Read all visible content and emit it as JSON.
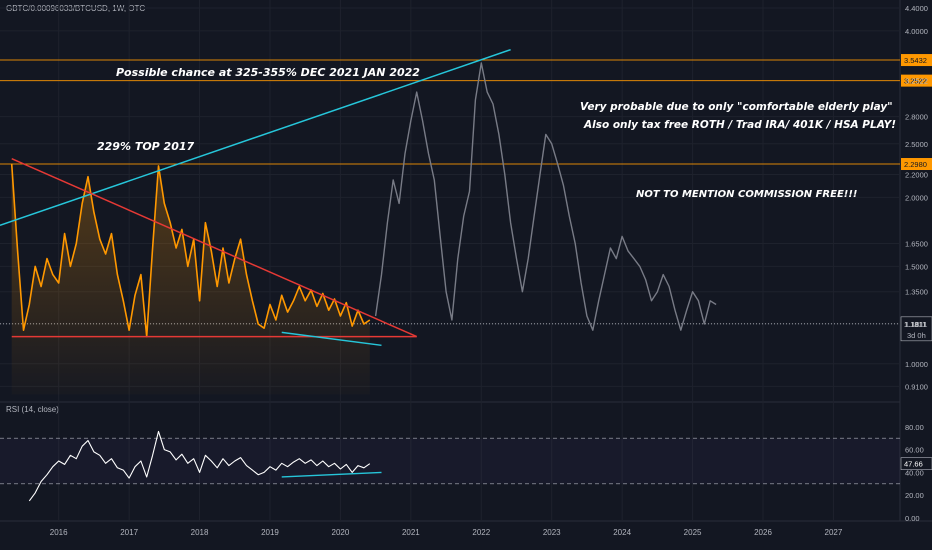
{
  "header": {
    "symbol": "GBTC/0.00096033/BTCUSD, 1W, OTC",
    "rsi_label": "RSI (14, close)"
  },
  "annotations": {
    "target": "Possible chance at 325-355% DEC 2021 JAN 2022",
    "top2017": "229% TOP  2017",
    "probable1": "Very probable due to only \"comfortable elderly play\"",
    "probable2": "Also only tax free ROTH / Trad IRA/ 401K / HSA PLAY!",
    "commission": "NOT TO MENTION COMMISSION FREE!!!"
  },
  "colors": {
    "background": "#131722",
    "price": "#ff9800",
    "projection": "#787b86",
    "trend_upper": "#26c6da",
    "trend_lower": "#e53935",
    "level": "#ff9800",
    "rsi": "#ffffff",
    "current": "#b2b5be"
  },
  "chart_data": {
    "type": "line",
    "price_axis": {
      "scale": "log",
      "ticks": [
        "4.4000",
        "4.0000",
        "3.2522",
        "2.8000",
        "2.5000",
        "2.2000",
        "2.0000",
        "1.6500",
        "1.5000",
        "1.3500",
        "1.1811",
        "1.0000",
        "0.9100"
      ],
      "range": [
        0.86,
        4.55
      ]
    },
    "levels": [
      {
        "label": "3.5432",
        "value": 3.5432
      },
      {
        "label": "3.2522",
        "value": 3.2522
      },
      {
        "label": "2.2980",
        "value": 2.298
      }
    ],
    "current": {
      "value": 1.1811,
      "label": "1.1811",
      "countdown": "3d 0h"
    },
    "x_axis": {
      "labels": [
        "2016",
        "2017",
        "2018",
        "2019",
        "2020",
        "2021",
        "2022",
        "2023",
        "2024",
        "2025",
        "2026",
        "2027"
      ],
      "range": [
        "2015-03",
        "2027-12"
      ]
    },
    "series": [
      {
        "kind": "actual",
        "points": [
          [
            "2015-05",
            2.3
          ],
          [
            "2015-06",
            1.6
          ],
          [
            "2015-07",
            1.15
          ],
          [
            "2015-08",
            1.28
          ],
          [
            "2015-09",
            1.5
          ],
          [
            "2015-10",
            1.38
          ],
          [
            "2015-11",
            1.55
          ],
          [
            "2015-12",
            1.45
          ],
          [
            "2016-01",
            1.4
          ],
          [
            "2016-02",
            1.72
          ],
          [
            "2016-03",
            1.5
          ],
          [
            "2016-04",
            1.65
          ],
          [
            "2016-05",
            1.95
          ],
          [
            "2016-06",
            2.18
          ],
          [
            "2016-07",
            1.88
          ],
          [
            "2016-08",
            1.68
          ],
          [
            "2016-09",
            1.58
          ],
          [
            "2016-10",
            1.72
          ],
          [
            "2016-11",
            1.45
          ],
          [
            "2016-12",
            1.3
          ],
          [
            "2017-01",
            1.15
          ],
          [
            "2017-02",
            1.33
          ],
          [
            "2017-03",
            1.45
          ],
          [
            "2017-04",
            1.12
          ],
          [
            "2017-05",
            1.62
          ],
          [
            "2017-06",
            2.28
          ],
          [
            "2017-07",
            1.95
          ],
          [
            "2017-08",
            1.8
          ],
          [
            "2017-09",
            1.62
          ],
          [
            "2017-10",
            1.75
          ],
          [
            "2017-11",
            1.5
          ],
          [
            "2017-12",
            1.68
          ],
          [
            "2018-01",
            1.3
          ],
          [
            "2018-02",
            1.8
          ],
          [
            "2018-03",
            1.6
          ],
          [
            "2018-04",
            1.38
          ],
          [
            "2018-05",
            1.62
          ],
          [
            "2018-06",
            1.4
          ],
          [
            "2018-07",
            1.55
          ],
          [
            "2018-08",
            1.68
          ],
          [
            "2018-09",
            1.45
          ],
          [
            "2018-10",
            1.3
          ],
          [
            "2018-11",
            1.18
          ],
          [
            "2018-12",
            1.16
          ],
          [
            "2019-01",
            1.28
          ],
          [
            "2019-02",
            1.2
          ],
          [
            "2019-03",
            1.33
          ],
          [
            "2019-04",
            1.24
          ],
          [
            "2019-05",
            1.3
          ],
          [
            "2019-06",
            1.38
          ],
          [
            "2019-07",
            1.3
          ],
          [
            "2019-08",
            1.36
          ],
          [
            "2019-09",
            1.27
          ],
          [
            "2019-10",
            1.34
          ],
          [
            "2019-11",
            1.25
          ],
          [
            "2019-12",
            1.31
          ],
          [
            "2020-01",
            1.22
          ],
          [
            "2020-02",
            1.29
          ],
          [
            "2020-03",
            1.17
          ],
          [
            "2020-04",
            1.25
          ],
          [
            "2020-05",
            1.18
          ],
          [
            "2020-06",
            1.2
          ]
        ]
      },
      {
        "kind": "projection",
        "points": [
          [
            "2020-07",
            1.22
          ],
          [
            "2020-08",
            1.45
          ],
          [
            "2020-09",
            1.8
          ],
          [
            "2020-10",
            2.15
          ],
          [
            "2020-11",
            1.95
          ],
          [
            "2020-12",
            2.4
          ],
          [
            "2021-01",
            2.75
          ],
          [
            "2021-02",
            3.1
          ],
          [
            "2021-03",
            2.75
          ],
          [
            "2021-04",
            2.4
          ],
          [
            "2021-05",
            2.15
          ],
          [
            "2021-06",
            1.7
          ],
          [
            "2021-07",
            1.35
          ],
          [
            "2021-08",
            1.2
          ],
          [
            "2021-09",
            1.55
          ],
          [
            "2021-10",
            1.85
          ],
          [
            "2021-11",
            2.05
          ],
          [
            "2021-12",
            3.0
          ],
          [
            "2022-01",
            3.5
          ],
          [
            "2022-02",
            3.1
          ],
          [
            "2022-03",
            2.95
          ],
          [
            "2022-04",
            2.6
          ],
          [
            "2022-05",
            2.2
          ],
          [
            "2022-06",
            1.8
          ],
          [
            "2022-07",
            1.55
          ],
          [
            "2022-08",
            1.35
          ],
          [
            "2022-09",
            1.55
          ],
          [
            "2022-10",
            1.85
          ],
          [
            "2022-11",
            2.2
          ],
          [
            "2022-12",
            2.6
          ],
          [
            "2023-01",
            2.5
          ],
          [
            "2023-02",
            2.3
          ],
          [
            "2023-03",
            2.1
          ],
          [
            "2023-04",
            1.85
          ],
          [
            "2023-05",
            1.65
          ],
          [
            "2023-06",
            1.4
          ],
          [
            "2023-07",
            1.22
          ],
          [
            "2023-08",
            1.15
          ],
          [
            "2023-09",
            1.3
          ],
          [
            "2023-10",
            1.45
          ],
          [
            "2023-11",
            1.62
          ],
          [
            "2023-12",
            1.55
          ],
          [
            "2024-01",
            1.7
          ],
          [
            "2024-02",
            1.6
          ],
          [
            "2024-03",
            1.55
          ],
          [
            "2024-04",
            1.5
          ],
          [
            "2024-05",
            1.42
          ],
          [
            "2024-06",
            1.3
          ],
          [
            "2024-07",
            1.35
          ],
          [
            "2024-08",
            1.45
          ],
          [
            "2024-09",
            1.38
          ],
          [
            "2024-10",
            1.25
          ],
          [
            "2024-11",
            1.15
          ],
          [
            "2024-12",
            1.25
          ],
          [
            "2025-01",
            1.35
          ],
          [
            "2025-02",
            1.3
          ],
          [
            "2025-03",
            1.18
          ],
          [
            "2025-04",
            1.3
          ],
          [
            "2025-05",
            1.28
          ]
        ]
      }
    ],
    "trendlines": [
      {
        "kind": "upper",
        "from": [
          "2015-03",
          1.78
        ],
        "to": [
          "2022-06",
          3.7
        ]
      },
      {
        "kind": "descending",
        "from": [
          "2015-05",
          2.35
        ],
        "to": [
          "2021-02",
          1.12
        ]
      },
      {
        "kind": "support",
        "from": [
          "2015-05",
          1.12
        ],
        "to": [
          "2021-02",
          1.12
        ]
      },
      {
        "kind": "low",
        "from": [
          "2019-03",
          1.14
        ],
        "to": [
          "2020-08",
          1.08
        ]
      }
    ],
    "rsi": {
      "value_label": "47.66",
      "value": 47.66,
      "y_ticks": [
        "80.00",
        "60.00",
        "40.00",
        "20.00",
        "0.00"
      ],
      "range": [
        0,
        100
      ],
      "bands": [
        70,
        30
      ],
      "points": [
        [
          "2015-08",
          15
        ],
        [
          "2015-09",
          22
        ],
        [
          "2015-10",
          32
        ],
        [
          "2015-11",
          38
        ],
        [
          "2015-12",
          45
        ],
        [
          "2016-01",
          50
        ],
        [
          "2016-02",
          47
        ],
        [
          "2016-03",
          55
        ],
        [
          "2016-04",
          52
        ],
        [
          "2016-05",
          63
        ],
        [
          "2016-06",
          68
        ],
        [
          "2016-07",
          58
        ],
        [
          "2016-08",
          55
        ],
        [
          "2016-09",
          48
        ],
        [
          "2016-10",
          52
        ],
        [
          "2016-11",
          44
        ],
        [
          "2016-12",
          42
        ],
        [
          "2017-01",
          35
        ],
        [
          "2017-02",
          45
        ],
        [
          "2017-03",
          50
        ],
        [
          "2017-04",
          36
        ],
        [
          "2017-05",
          55
        ],
        [
          "2017-06",
          76
        ],
        [
          "2017-07",
          60
        ],
        [
          "2017-08",
          58
        ],
        [
          "2017-09",
          51
        ],
        [
          "2017-10",
          56
        ],
        [
          "2017-11",
          48
        ],
        [
          "2017-12",
          52
        ],
        [
          "2018-01",
          40
        ],
        [
          "2018-02",
          55
        ],
        [
          "2018-03",
          50
        ],
        [
          "2018-04",
          44
        ],
        [
          "2018-05",
          52
        ],
        [
          "2018-06",
          46
        ],
        [
          "2018-07",
          50
        ],
        [
          "2018-08",
          53
        ],
        [
          "2018-09",
          46
        ],
        [
          "2018-10",
          42
        ],
        [
          "2018-11",
          38
        ],
        [
          "2018-12",
          40
        ],
        [
          "2019-01",
          45
        ],
        [
          "2019-02",
          42
        ],
        [
          "2019-03",
          48
        ],
        [
          "2019-04",
          45
        ],
        [
          "2019-05",
          49
        ],
        [
          "2019-06",
          52
        ],
        [
          "2019-07",
          48
        ],
        [
          "2019-08",
          51
        ],
        [
          "2019-09",
          46
        ],
        [
          "2019-10",
          50
        ],
        [
          "2019-11",
          45
        ],
        [
          "2019-12",
          48
        ],
        [
          "2020-01",
          43
        ],
        [
          "2020-02",
          47
        ],
        [
          "2020-03",
          40
        ],
        [
          "2020-04",
          46
        ],
        [
          "2020-05",
          44
        ],
        [
          "2020-06",
          47.66
        ]
      ],
      "trendline": {
        "from": [
          "2019-03",
          36
        ],
        "to": [
          "2020-08",
          40
        ]
      }
    }
  }
}
